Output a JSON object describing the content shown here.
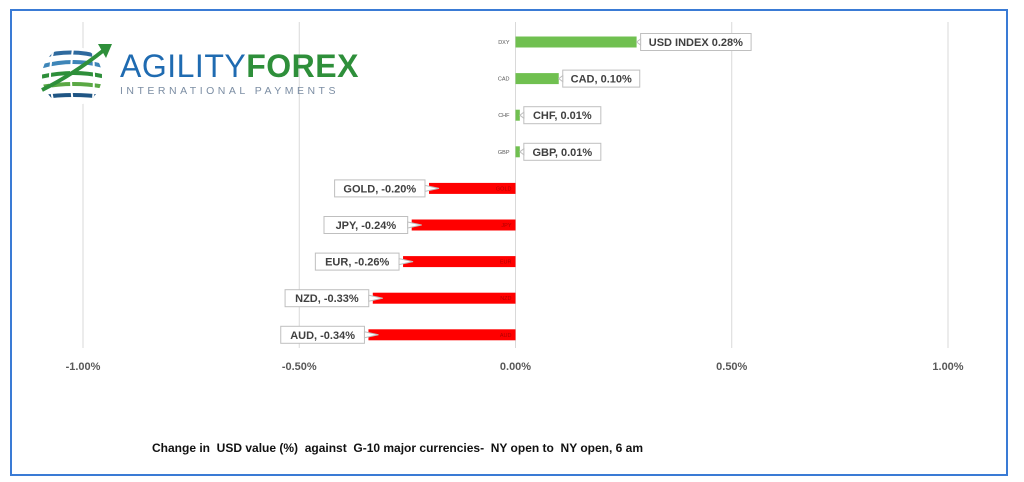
{
  "logo": {
    "brand_part1": "AGILITY",
    "brand_part2": "FOREX",
    "tagline": "INTERNATIONAL PAYMENTS",
    "colors": {
      "blue": "#1f6bb1",
      "green": "#2e8f3a",
      "gray": "#7b8da3"
    }
  },
  "caption": "Change in  USD value (%)  against  G-10 major currencies-  NY open to  NY open, 6 am",
  "chart_data": {
    "type": "bar",
    "orientation": "horizontal",
    "categories": [
      "DXY",
      "CAD",
      "CHF",
      "GBP",
      "GOLD",
      "JPY",
      "EUR",
      "NZD",
      "AUD"
    ],
    "values": [
      0.28,
      0.1,
      0.01,
      0.01,
      -0.2,
      -0.24,
      -0.26,
      -0.33,
      -0.34
    ],
    "data_labels": [
      "USD INDEX 0.28%",
      "CAD, 0.10%",
      "CHF, 0.01%",
      "GBP, 0.01%",
      "GOLD, -0.20%",
      "JPY, -0.24%",
      "EUR, -0.26%",
      "NZD, -0.33%",
      "AUD, -0.34%"
    ],
    "xlim": [
      -1.0,
      1.0
    ],
    "x_ticks": [
      -1.0,
      -0.5,
      0.0,
      0.5,
      1.0
    ],
    "x_tick_labels": [
      "-1.00%",
      "-0.50%",
      "0.00%",
      "0.50%",
      "1.00%"
    ],
    "grid": "vertical",
    "colors": {
      "positive": "#70c050",
      "negative": "#ff0000",
      "gridline": "#d9d9d9",
      "tick_text": "#595959",
      "label_text": "#404040"
    }
  }
}
